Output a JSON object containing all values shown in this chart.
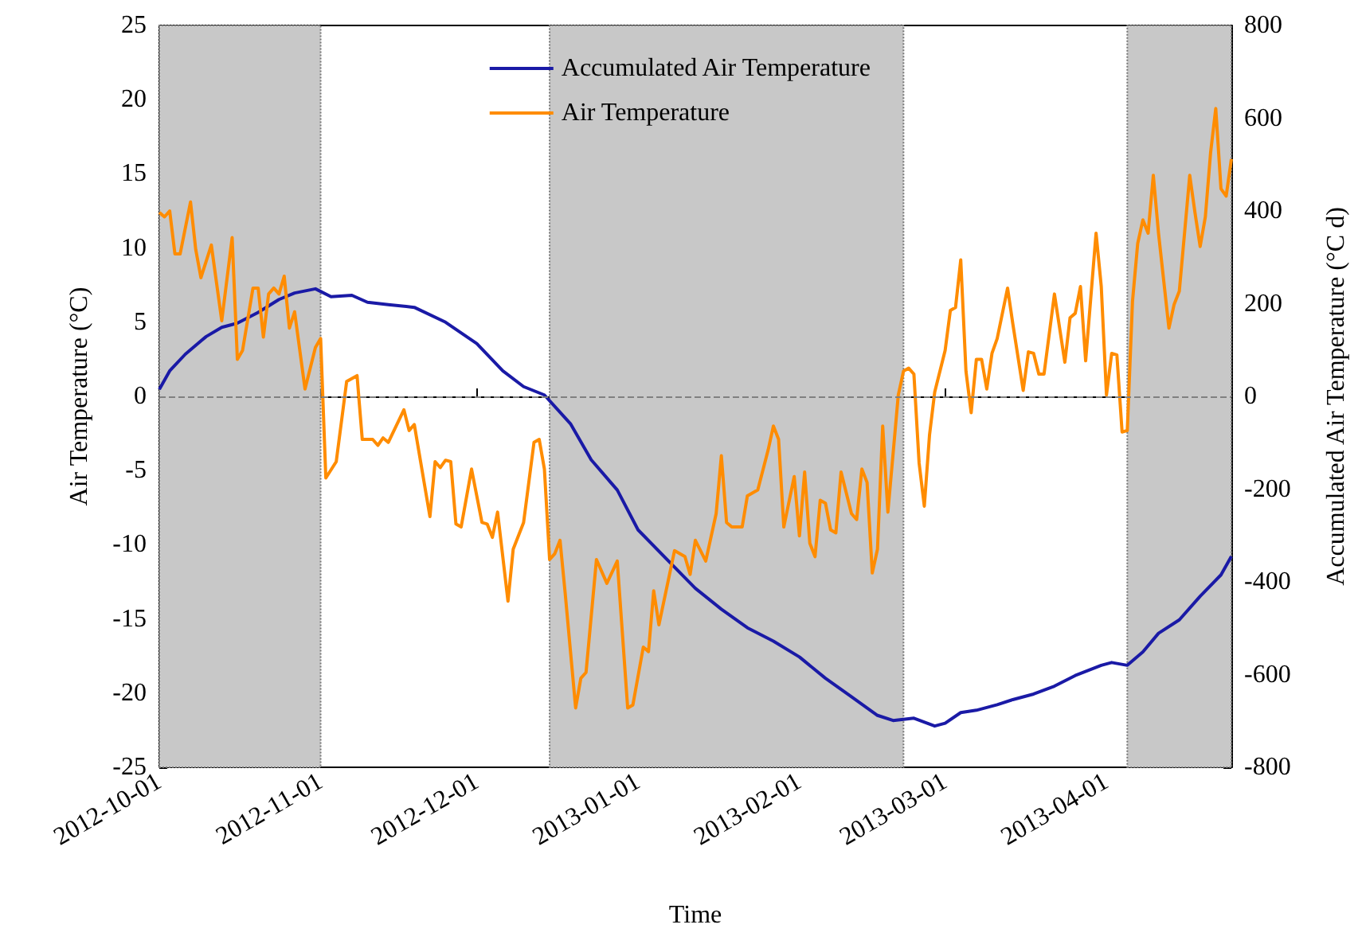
{
  "chart_data": {
    "type": "line",
    "xlabel": "Time",
    "ylabel": "Air Temperature (°C)",
    "y2label": "Accumulated Air Temperature (°C d)",
    "xlim": [
      "2012-10-01",
      "2013-04-25"
    ],
    "xticks": [
      "2012-10-01",
      "2012-11-01",
      "2012-12-01",
      "2013-01-01",
      "2013-02-01",
      "2013-03-01",
      "2013-04-01"
    ],
    "ylim": [
      -25,
      25
    ],
    "yticks": [
      -25,
      -20,
      -15,
      -10,
      -5,
      0,
      5,
      10,
      15,
      20,
      25
    ],
    "y2lim": [
      -800,
      800
    ],
    "y2ticks": [
      -800,
      -600,
      -400,
      -200,
      0,
      200,
      400,
      600,
      800
    ],
    "legend": "top",
    "grid": false,
    "marker": "none",
    "line_style": "solid",
    "ref_lines": [
      {
        "axis": "y",
        "value": 0,
        "color": "#808080",
        "line_style": "dashed"
      }
    ],
    "bands": [
      {
        "axis": "x",
        "from": "2012-10-01",
        "to": "2012-11-01",
        "color": "#c8c8c8"
      },
      {
        "axis": "x",
        "from": "2012-12-15",
        "to": "2013-02-21",
        "color": "#c8c8c8"
      },
      {
        "axis": "x",
        "from": "2013-04-05",
        "to": "2013-04-25",
        "color": "#c8c8c8"
      }
    ],
    "series": [
      {
        "name": "Accumulated Air Temperature",
        "color": "#1a1aa6",
        "axis": "y2",
        "x": [
          "2012-10-01",
          "2012-10-03",
          "2012-10-06",
          "2012-10-10",
          "2012-10-13",
          "2012-10-16",
          "2012-10-20",
          "2012-10-24",
          "2012-10-27",
          "2012-10-31",
          "2012-11-03",
          "2012-11-07",
          "2012-11-10",
          "2012-11-14",
          "2012-11-19",
          "2012-11-25",
          "2012-12-01",
          "2012-12-06",
          "2012-12-10",
          "2012-12-14",
          "2012-12-19",
          "2012-12-23",
          "2012-12-28",
          "2013-01-01",
          "2013-01-07",
          "2013-01-12",
          "2013-01-17",
          "2013-01-22",
          "2013-01-27",
          "2013-02-01",
          "2013-02-06",
          "2013-02-11",
          "2013-02-16",
          "2013-02-19",
          "2013-02-23",
          "2013-02-27",
          "2013-03-01",
          "2013-03-04",
          "2013-03-07",
          "2013-03-11",
          "2013-03-14",
          "2013-03-18",
          "2013-03-22",
          "2013-03-26",
          "2013-03-31",
          "2013-04-02",
          "2013-04-05",
          "2013-04-08",
          "2013-04-11",
          "2013-04-15",
          "2013-04-19",
          "2013-04-23",
          "2013-04-25"
        ],
        "values": [
          15,
          55,
          91,
          129,
          149,
          158,
          181,
          209,
          223,
          232,
          215,
          218,
          203,
          198,
          192,
          160,
          114,
          55,
          21,
          3,
          -59,
          -137,
          -202,
          -288,
          -357,
          -414,
          -459,
          -499,
          -528,
          -562,
          -608,
          -648,
          -688,
          -699,
          -694,
          -711,
          -705,
          -682,
          -677,
          -665,
          -654,
          -642,
          -625,
          -602,
          -580,
          -574,
          -580,
          -551,
          -511,
          -482,
          -431,
          -385,
          -345
        ]
      },
      {
        "name": "Air Temperature",
        "color": "#ff8c00",
        "x": [
          "2012-10-01",
          "2012-10-02",
          "2012-10-03",
          "2012-10-04",
          "2012-10-05",
          "2012-10-07",
          "2012-10-08",
          "2012-10-09",
          "2012-10-11",
          "2012-10-13",
          "2012-10-15",
          "2012-10-16",
          "2012-10-17",
          "2012-10-19",
          "2012-10-20",
          "2012-10-21",
          "2012-10-22",
          "2012-10-23",
          "2012-10-24",
          "2012-10-25",
          "2012-10-26",
          "2012-10-27",
          "2012-10-29",
          "2012-10-31",
          "2012-11-01",
          "2012-11-02",
          "2012-11-04",
          "2012-11-06",
          "2012-11-08",
          "2012-11-09",
          "2012-11-11",
          "2012-11-12",
          "2012-11-13",
          "2012-11-14",
          "2012-11-17",
          "2012-11-18",
          "2012-11-19",
          "2012-11-22",
          "2012-11-23",
          "2012-11-24",
          "2012-11-25",
          "2012-11-26",
          "2012-11-27",
          "2012-11-28",
          "2012-11-30",
          "2012-12-02",
          "2012-12-03",
          "2012-12-04",
          "2012-12-05",
          "2012-12-07",
          "2012-12-08",
          "2012-12-10",
          "2012-12-12",
          "2012-12-13",
          "2012-12-14",
          "2012-12-15",
          "2012-12-16",
          "2012-12-17",
          "2012-12-18",
          "2012-12-20",
          "2012-12-21",
          "2012-12-22",
          "2012-12-24",
          "2012-12-26",
          "2012-12-28",
          "2012-12-30",
          "2012-12-31",
          "2013-01-02",
          "2013-01-03",
          "2013-01-04",
          "2013-01-05",
          "2013-01-08",
          "2013-01-10",
          "2013-01-11",
          "2013-01-12",
          "2013-01-14",
          "2013-01-16",
          "2013-01-17",
          "2013-01-18",
          "2013-01-19",
          "2013-01-21",
          "2013-01-22",
          "2013-01-24",
          "2013-01-26",
          "2013-01-27",
          "2013-01-28",
          "2013-01-29",
          "2013-01-31",
          "2013-02-01",
          "2013-02-02",
          "2013-02-03",
          "2013-02-04",
          "2013-02-05",
          "2013-02-06",
          "2013-02-07",
          "2013-02-08",
          "2013-02-09",
          "2013-02-11",
          "2013-02-12",
          "2013-02-13",
          "2013-02-14",
          "2013-02-15",
          "2013-02-16",
          "2013-02-17",
          "2013-02-18",
          "2013-02-20",
          "2013-02-21",
          "2013-02-22",
          "2013-02-23",
          "2013-02-24",
          "2013-02-25",
          "2013-02-26",
          "2013-02-27",
          "2013-03-01",
          "2013-03-02",
          "2013-03-03",
          "2013-03-04",
          "2013-03-05",
          "2013-03-06",
          "2013-03-07",
          "2013-03-08",
          "2013-03-09",
          "2013-03-10",
          "2013-03-11",
          "2013-03-13",
          "2013-03-14",
          "2013-03-16",
          "2013-03-17",
          "2013-03-18",
          "2013-03-19",
          "2013-03-20",
          "2013-03-22",
          "2013-03-23",
          "2013-03-24",
          "2013-03-25",
          "2013-03-26",
          "2013-03-27",
          "2013-03-28",
          "2013-03-30",
          "2013-03-31",
          "2013-04-01",
          "2013-04-02",
          "2013-04-03",
          "2013-04-04",
          "2013-04-05",
          "2013-04-06",
          "2013-04-07",
          "2013-04-08",
          "2013-04-09",
          "2013-04-10",
          "2013-04-11",
          "2013-04-13",
          "2013-04-14",
          "2013-04-15",
          "2013-04-17",
          "2013-04-18",
          "2013-04-19",
          "2013-04-20",
          "2013-04-21",
          "2013-04-22",
          "2013-04-23",
          "2013-04-24",
          "2013-04-25"
        ],
        "values": [
          12.4,
          12.1,
          12.5,
          9.6,
          9.6,
          13.1,
          9.9,
          8.0,
          10.2,
          5.1,
          10.7,
          2.5,
          3.1,
          7.3,
          7.3,
          4.0,
          6.9,
          7.3,
          6.9,
          8.1,
          4.6,
          5.7,
          0.5,
          3.3,
          3.9,
          -5.5,
          -4.4,
          1.0,
          1.4,
          -2.9,
          -2.9,
          -3.3,
          -2.8,
          -3.1,
          -0.9,
          -2.3,
          -1.9,
          -8.1,
          -4.4,
          -4.8,
          -4.3,
          -4.4,
          -8.6,
          -8.8,
          -4.9,
          -8.5,
          -8.6,
          -9.5,
          -7.8,
          -13.8,
          -10.3,
          -8.5,
          -3.1,
          -2.9,
          -4.9,
          -11.0,
          -10.6,
          -9.7,
          -13.3,
          -21.0,
          -19.0,
          -18.6,
          -11.0,
          -12.6,
          -11.1,
          -21.0,
          -20.8,
          -16.9,
          -17.2,
          -13.1,
          -15.4,
          -10.4,
          -10.8,
          -12.0,
          -9.7,
          -11.1,
          -7.9,
          -4.0,
          -8.5,
          -8.8,
          -8.8,
          -6.7,
          -6.3,
          -3.6,
          -2.0,
          -2.9,
          -8.8,
          -5.4,
          -9.4,
          -5.1,
          -9.9,
          -10.8,
          -7.0,
          -7.2,
          -9.0,
          -9.2,
          -5.1,
          -7.9,
          -8.3,
          -4.9,
          -5.8,
          -11.9,
          -10.3,
          -2.0,
          -7.8,
          0.1,
          1.7,
          1.9,
          1.5,
          -4.5,
          -7.4,
          -2.6,
          0.3,
          3.1,
          5.8,
          6.0,
          9.2,
          1.7,
          -1.1,
          2.5,
          2.5,
          0.5,
          2.9,
          3.9,
          7.3,
          4.9,
          0.4,
          3.0,
          2.9,
          1.5,
          1.5,
          6.9,
          4.6,
          2.3,
          5.3,
          5.6,
          7.4,
          2.4,
          11.0,
          7.4,
          0.1,
          2.9,
          2.8,
          -2.4,
          -2.3,
          6.4,
          10.3,
          11.9,
          11.0,
          14.9,
          11.0,
          4.6,
          6.2,
          7.1,
          14.9,
          12.4,
          10.1,
          12.1,
          16.4,
          19.4,
          14.0,
          13.5,
          16.0
        ]
      }
    ]
  }
}
